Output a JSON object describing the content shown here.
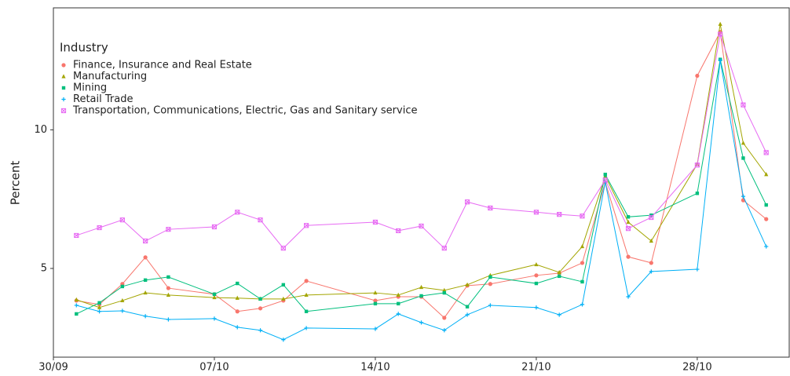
{
  "chart_data": {
    "type": "line",
    "y_label": "Percent",
    "legend_title": "Industry",
    "legend": "top-left",
    "x": [
      "01/10",
      "02/10",
      "03/10",
      "04/10",
      "05/10",
      "07/10",
      "08/10",
      "09/10",
      "10/10",
      "11/10",
      "14/10",
      "15/10",
      "16/10",
      "17/10",
      "18/10",
      "19/10",
      "21/10",
      "22/10",
      "23/10",
      "24/10",
      "25/10",
      "26/10",
      "28/10",
      "29/10",
      "30/10",
      "31/10"
    ],
    "xlim": [
      "30/09",
      "01/11"
    ],
    "xticks": [
      "30/09",
      "07/10",
      "14/10",
      "21/10",
      "28/10"
    ],
    "ylim": [
      1.8,
      14.4
    ],
    "yticks": [
      5,
      10
    ],
    "series": [
      {
        "name": "Finance, Insurance and Real Estate",
        "color": "#F8766D",
        "shape": "circle",
        "values": [
          3.84,
          3.7,
          4.44,
          5.4,
          4.29,
          4.07,
          3.45,
          3.56,
          3.84,
          4.55,
          3.84,
          3.98,
          3.98,
          3.22,
          4.38,
          4.44,
          4.75,
          4.83,
          5.2,
          8.11,
          5.42,
          5.2,
          11.95,
          13.53,
          7.46,
          6.78
        ]
      },
      {
        "name": "Manufacturing",
        "color": "#A3A500",
        "shape": "triangle",
        "values": [
          3.87,
          3.59,
          3.84,
          4.12,
          4.04,
          3.95,
          3.93,
          3.9,
          3.9,
          4.04,
          4.12,
          4.04,
          4.32,
          4.21,
          4.41,
          4.75,
          5.14,
          4.86,
          5.79,
          8.33,
          6.67,
          5.99,
          8.76,
          13.81,
          9.52,
          8.39
        ]
      },
      {
        "name": "Mining",
        "color": "#00BF7D",
        "shape": "square",
        "values": [
          3.36,
          3.76,
          4.35,
          4.58,
          4.69,
          4.07,
          4.46,
          3.9,
          4.41,
          3.45,
          3.73,
          3.73,
          4.01,
          4.12,
          3.62,
          4.69,
          4.46,
          4.72,
          4.52,
          8.39,
          6.86,
          6.92,
          7.71,
          12.54,
          8.98,
          7.29
        ]
      },
      {
        "name": "Retail Trade",
        "color": "#00B0F6",
        "shape": "plus",
        "values": [
          3.67,
          3.45,
          3.47,
          3.28,
          3.16,
          3.19,
          2.88,
          2.77,
          2.43,
          2.85,
          2.82,
          3.36,
          3.05,
          2.77,
          3.33,
          3.67,
          3.59,
          3.33,
          3.7,
          8.11,
          3.98,
          4.89,
          4.97,
          12.51,
          7.6,
          5.79
        ]
      },
      {
        "name": "Transportation, Communications, Electric, Gas and Sanitary service",
        "color": "#E76BF3",
        "shape": "square-cross",
        "values": [
          6.19,
          6.47,
          6.75,
          5.99,
          6.41,
          6.5,
          7.03,
          6.75,
          5.73,
          6.55,
          6.67,
          6.36,
          6.53,
          5.73,
          7.4,
          7.18,
          7.03,
          6.95,
          6.89,
          8.19,
          6.44,
          6.84,
          8.73,
          13.45,
          10.9,
          9.18
        ]
      }
    ]
  }
}
